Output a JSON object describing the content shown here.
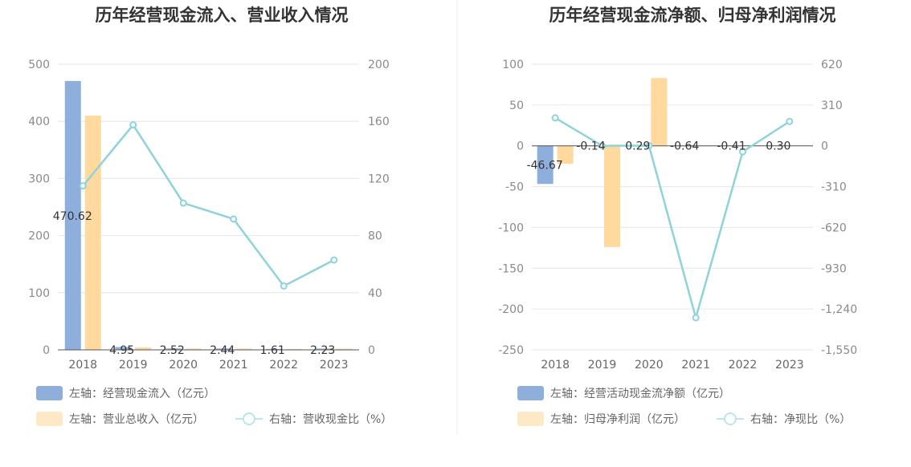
{
  "colors": {
    "blue": "#8eaedb",
    "orange": "#ffd99d",
    "orange_light": "#fde9c6",
    "line": "#8fd3da",
    "line_legend": "#b8e6ea"
  },
  "chart_data": [
    {
      "type": "bar",
      "title": "历年经营现金流入、营业收入情况",
      "categories": [
        "2018",
        "2019",
        "2020",
        "2021",
        "2022",
        "2023"
      ],
      "left_axis": {
        "min": 0,
        "max": 500,
        "ticks": [
          "0",
          "100",
          "200",
          "300",
          "400",
          "500"
        ]
      },
      "right_axis": {
        "min": 0,
        "max": 200,
        "ticks": [
          "0",
          "40",
          "80",
          "120",
          "160",
          "200"
        ]
      },
      "series": [
        {
          "name": "左轴：经营现金流入（亿元）",
          "axis": "left",
          "kind": "bar",
          "values": [
            470.62,
            4.95,
            2.52,
            2.44,
            1.61,
            2.23
          ],
          "labels": [
            "470.62",
            "4.95",
            "2.52",
            "2.44",
            "1.61",
            "2.23"
          ]
        },
        {
          "name": "左轴：营业总收入（亿元）",
          "axis": "left",
          "kind": "bar",
          "values": [
            410,
            4.2,
            2.2,
            2.1,
            1.4,
            2.0
          ]
        },
        {
          "name": "右轴：营收现金比（%）",
          "axis": "right",
          "kind": "line",
          "values": [
            114.8,
            157.5,
            102.8,
            91.6,
            44.7,
            62.9
          ]
        }
      ]
    },
    {
      "type": "bar",
      "title": "历年经营现金流净额、归母净利润情况",
      "categories": [
        "2018",
        "2019",
        "2020",
        "2021",
        "2022",
        "2023"
      ],
      "left_axis": {
        "min": -250,
        "max": 100,
        "ticks": [
          "-250",
          "-200",
          "-150",
          "-100",
          "-50",
          "0",
          "50",
          "100"
        ]
      },
      "right_axis": {
        "min": -1550,
        "max": 620,
        "ticks": [
          "-1,550",
          "-1,240",
          "-930",
          "-620",
          "-310",
          "0",
          "310",
          "620"
        ]
      },
      "series": [
        {
          "name": "左轴：经营活动现金流净额（亿元）",
          "axis": "left",
          "kind": "bar",
          "values": [
            -46.67,
            -0.14,
            0.29,
            -0.64,
            -0.41,
            0.3
          ],
          "labels": [
            "-46.67",
            "-0.14",
            "0.29",
            "-0.64",
            "-0.41",
            "0.30"
          ]
        },
        {
          "name": "左轴：归母净利润（亿元）",
          "axis": "left",
          "kind": "bar",
          "values": [
            -22,
            -124,
            83,
            -0.3,
            -0.2,
            0.2
          ]
        },
        {
          "name": "右轴：净现比（%）",
          "axis": "right",
          "kind": "line",
          "values": [
            212,
            0,
            1.5,
            -1306,
            -45,
            185
          ]
        }
      ]
    }
  ]
}
